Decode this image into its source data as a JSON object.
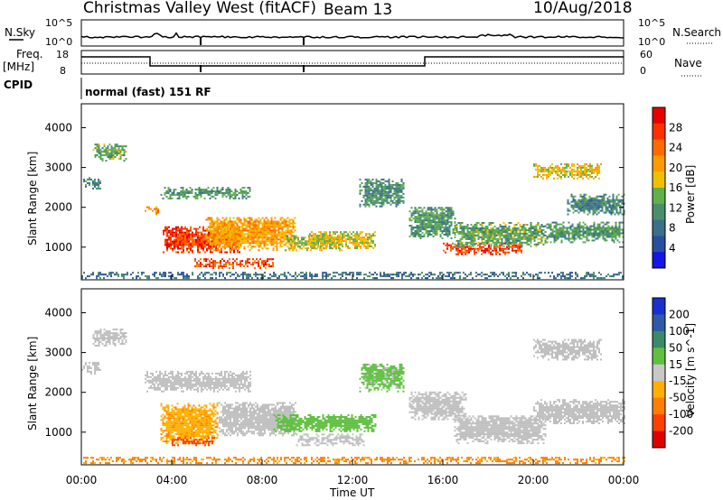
{
  "header": {
    "title": "Christmas Valley West (fitACF)",
    "beam": "Beam 13",
    "date": "10/Aug/2018"
  },
  "top_panels": {
    "nsky_label": "N.Sky",
    "nsky_ticks": [
      "10^5",
      "10^0"
    ],
    "nsearch_label": "N.Search",
    "nsearch_ticks": [
      "10^5",
      "10^0"
    ],
    "freq_label_1": "Freq.",
    "freq_label_2": "[MHz]",
    "freq_ticks": [
      "18",
      "8"
    ],
    "nave_label": "Nave",
    "nave_ticks": [
      "60",
      "0"
    ],
    "cpid_label": "CPID",
    "cpid_text": "normal (fast) 151 RF"
  },
  "colors": {
    "power_scale": [
      "#1515e6",
      "#2a4fa0",
      "#3b6f8a",
      "#4a8f6a",
      "#62b04a",
      "#f0c000",
      "#ff9a00",
      "#ff6a00",
      "#ff3000",
      "#e80000"
    ],
    "velocity_scale": [
      "#1a2fd0",
      "#2e5aa8",
      "#3a8a6a",
      "#5fc040",
      "#c8c8c8",
      "#ffb000",
      "#ff8000",
      "#ff4000",
      "#e00000"
    ],
    "ground_scatter": "#bfbfbf"
  },
  "chart_data": [
    {
      "type": "heatmap",
      "panel": "power",
      "ylabel": "Slant Range [km]",
      "ylim": [
        180,
        4600
      ],
      "yticks": [
        "4000",
        "3000",
        "2000",
        "1000"
      ],
      "colorbar_label": "Power [dB]",
      "colorbar_ticks": [
        "28",
        "24",
        "20",
        "16",
        "12",
        "8",
        "4"
      ],
      "clim": [
        0,
        32
      ],
      "xlim_hours": [
        0,
        24
      ],
      "regions": [
        {
          "t0": 0.5,
          "t1": 2.0,
          "r0": 3150,
          "r1": 3600,
          "v": 13
        },
        {
          "t0": 0.0,
          "t1": 0.8,
          "r0": 2450,
          "r1": 2750,
          "v": 11
        },
        {
          "t0": 2.8,
          "t1": 3.4,
          "r0": 1800,
          "r1": 2000,
          "v": 22
        },
        {
          "t0": 3.6,
          "t1": 7.0,
          "r0": 850,
          "r1": 1500,
          "v": 27
        },
        {
          "t0": 5.5,
          "t1": 9.5,
          "r0": 900,
          "r1": 1750,
          "v": 20
        },
        {
          "t0": 9.0,
          "t1": 11.5,
          "r0": 900,
          "r1": 1300,
          "v": 16
        },
        {
          "t0": 10.0,
          "t1": 13.0,
          "r0": 950,
          "r1": 1400,
          "v": 17
        },
        {
          "t0": 5.0,
          "t1": 8.5,
          "r0": 450,
          "r1": 700,
          "v": 26
        },
        {
          "t0": 3.5,
          "t1": 7.5,
          "r0": 2200,
          "r1": 2500,
          "v": 12
        },
        {
          "t0": 12.3,
          "t1": 14.3,
          "r0": 2000,
          "r1": 2700,
          "v": 11
        },
        {
          "t0": 14.5,
          "t1": 16.5,
          "r0": 1200,
          "r1": 2000,
          "v": 12
        },
        {
          "t0": 16.0,
          "t1": 19.5,
          "r0": 800,
          "r1": 1100,
          "v": 27
        },
        {
          "t0": 16.5,
          "t1": 20.5,
          "r0": 1000,
          "r1": 1600,
          "v": 13
        },
        {
          "t0": 20.5,
          "t1": 24.0,
          "r0": 1100,
          "r1": 1600,
          "v": 12
        },
        {
          "t0": 20.0,
          "t1": 23.0,
          "r0": 2700,
          "r1": 3100,
          "v": 18
        },
        {
          "t0": 21.5,
          "t1": 24.0,
          "r0": 1800,
          "r1": 2300,
          "v": 10
        },
        {
          "t0": 0.0,
          "t1": 24.0,
          "r0": 200,
          "r1": 360,
          "v": 8
        }
      ]
    },
    {
      "type": "heatmap",
      "panel": "velocity",
      "ylabel": "Slant Range [km]",
      "ylim": [
        180,
        4600
      ],
      "yticks": [
        "4000",
        "3000",
        "2000",
        "1000"
      ],
      "colorbar_label": "Velocity [m s^-1]",
      "colorbar_ticks": [
        "200",
        "100",
        "50",
        "15",
        "-15",
        "-50",
        "-100",
        "-200"
      ],
      "clim": [
        -250,
        250
      ],
      "xlim_hours": [
        0,
        24
      ],
      "xticks": [
        "00:00",
        "04:00",
        "08:00",
        "12:00",
        "16:00",
        "20:00",
        "00:00"
      ],
      "xlabel": "Time UT",
      "regions": [
        {
          "t0": 0.5,
          "t1": 2.0,
          "r0": 3150,
          "r1": 3600,
          "v": 0
        },
        {
          "t0": 0.0,
          "t1": 0.8,
          "r0": 2450,
          "r1": 2750,
          "v": 0
        },
        {
          "t0": 2.8,
          "t1": 7.5,
          "r0": 2000,
          "r1": 2500,
          "v": 0
        },
        {
          "t0": 3.5,
          "t1": 6.0,
          "r0": 700,
          "r1": 1700,
          "v": -40
        },
        {
          "t0": 6.0,
          "t1": 9.5,
          "r0": 900,
          "r1": 1750,
          "v": 0
        },
        {
          "t0": 8.5,
          "t1": 13.0,
          "r0": 1000,
          "r1": 1450,
          "v": 35
        },
        {
          "t0": 9.5,
          "t1": 12.5,
          "r0": 650,
          "r1": 950,
          "v": 0
        },
        {
          "t0": 4.0,
          "t1": 6.0,
          "r0": 650,
          "r1": 850,
          "v": -120
        },
        {
          "t0": 12.3,
          "t1": 14.3,
          "r0": 2000,
          "r1": 2700,
          "v": 25
        },
        {
          "t0": 14.5,
          "t1": 17.0,
          "r0": 1300,
          "r1": 2000,
          "v": 0
        },
        {
          "t0": 16.5,
          "t1": 20.5,
          "r0": 700,
          "r1": 1400,
          "v": 0
        },
        {
          "t0": 20.0,
          "t1": 24.0,
          "r0": 1200,
          "r1": 1800,
          "v": 0
        },
        {
          "t0": 20.0,
          "t1": 23.0,
          "r0": 2800,
          "r1": 3300,
          "v": 0
        },
        {
          "t0": 0.0,
          "t1": 24.0,
          "r0": 200,
          "r1": 380,
          "v": -60
        }
      ]
    }
  ]
}
